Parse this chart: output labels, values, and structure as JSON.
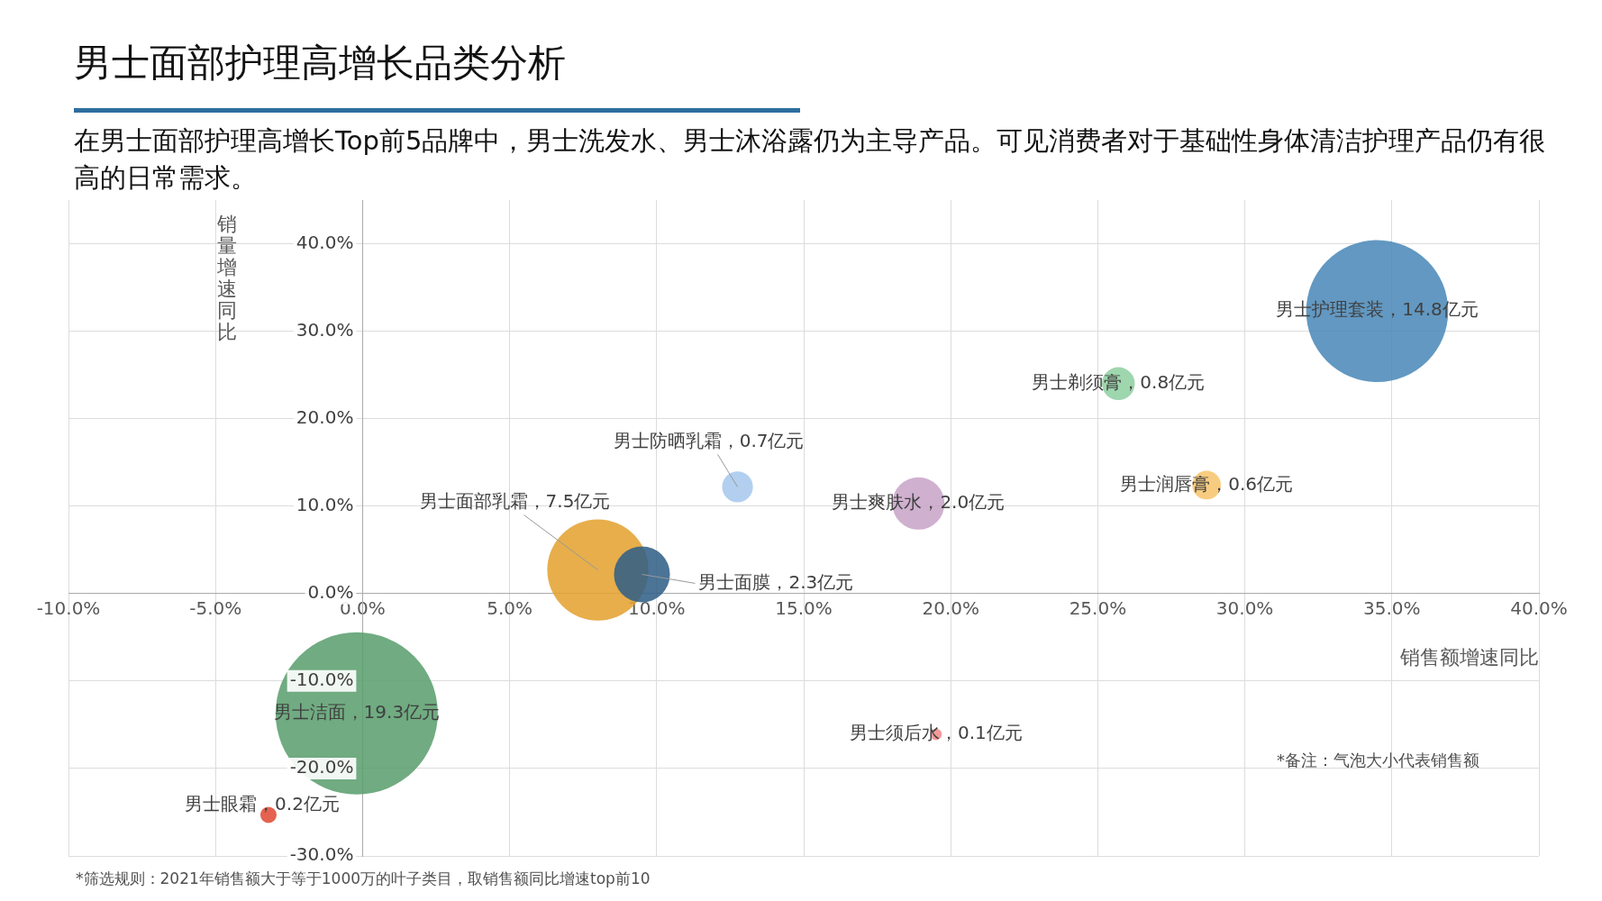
{
  "chart_data": {
    "type": "bubble",
    "title": "男士面部护理高增长品类分析",
    "subtitle": "在男士面部护理高增长Top前5品牌中，男士洗发水、男士沐浴露仍为主导产品。可见消费者对于基础性身体清洁护理产品仍有很高的日常需求。",
    "xlabel": "销售额增速同比",
    "ylabel": "销量增速同比",
    "x": [
      34.5,
      25.7,
      12.75,
      18.9,
      28.7,
      8.0,
      9.5,
      -0.2,
      -3.2,
      19.5
    ],
    "values": [
      32.3,
      24.0,
      12.2,
      10.3,
      12.4,
      2.7,
      2.2,
      -13.7,
      -25.3,
      -16.1
    ],
    "sizes": [
      0.767,
      0.041,
      0.036,
      0.104,
      0.031,
      0.389,
      0.119,
      1,
      0.01,
      0.005
    ],
    "colors": [
      "#4a88b8",
      "#8fd0a0",
      "#a6c8ee",
      "#c8a4c8",
      "#f7c46c",
      "#e3a12f",
      "#2f5f86",
      "#5a9e6e",
      "#e04a35",
      "#f08a8a"
    ],
    "xlim": [
      -10,
      40
    ],
    "xticks": [
      {
        "value": -10,
        "label": "-10.0%"
      },
      {
        "value": -5,
        "label": "-5.0%"
      },
      {
        "value": 0,
        "label": "0.0%"
      },
      {
        "value": 5,
        "label": "5.0%"
      },
      {
        "value": 10,
        "label": "10.0%"
      },
      {
        "value": 15,
        "label": "15.0%"
      },
      {
        "value": 20,
        "label": "20.0%"
      },
      {
        "value": 25,
        "label": "25.0%"
      },
      {
        "value": 30,
        "label": "30.0%"
      },
      {
        "value": 35,
        "label": "35.0%"
      },
      {
        "value": 40,
        "label": "40.0%"
      }
    ],
    "ylim": [
      -30,
      45
    ],
    "yticks": [
      {
        "value": -30,
        "label": "-30.0%"
      },
      {
        "value": -20,
        "label": "-20.0%"
      },
      {
        "value": -10,
        "label": "-10.0%"
      },
      {
        "value": 0,
        "label": "0.0%"
      },
      {
        "value": 10,
        "label": "10.0%"
      },
      {
        "value": 20,
        "label": "20.0%"
      },
      {
        "value": 30,
        "label": "30.0%"
      },
      {
        "value": 40,
        "label": "40.0%"
      }
    ],
    "grid": true,
    "annotations": [
      {
        "text": "男士护理套装，14.8亿元",
        "x": 34.5,
        "y": 32.3
      },
      {
        "text": "男士剃须膏，0.8亿元",
        "x": 25.7,
        "y": 24.0
      },
      {
        "text": "男士防晒乳霜，0.7亿元",
        "x": 12.75,
        "y": 12.2
      },
      {
        "text": "男士爽肤水，2.0亿元",
        "x": 18.9,
        "y": 10.3
      },
      {
        "text": "男士润唇膏，0.6亿元",
        "x": 28.7,
        "y": 12.4
      },
      {
        "text": "男士面部乳霜，7.5亿元",
        "x": 8.0,
        "y": 2.7
      },
      {
        "text": "男士面膜，2.3亿元",
        "x": 9.5,
        "y": 2.2
      },
      {
        "text": "男士洁面，19.3亿元",
        "x": -0.2,
        "y": -13.7
      },
      {
        "text": "男士眼霜，0.2亿元",
        "x": -3.2,
        "y": -25.3
      },
      {
        "text": "男士须后水，0.1亿元",
        "x": 19.5,
        "y": -16.1
      },
      "*备注：气泡大小代表销售额",
      "*筛选规则：2021年销售额大于等于1000万的叶子类目，取销售额同比增速top前10"
    ]
  }
}
